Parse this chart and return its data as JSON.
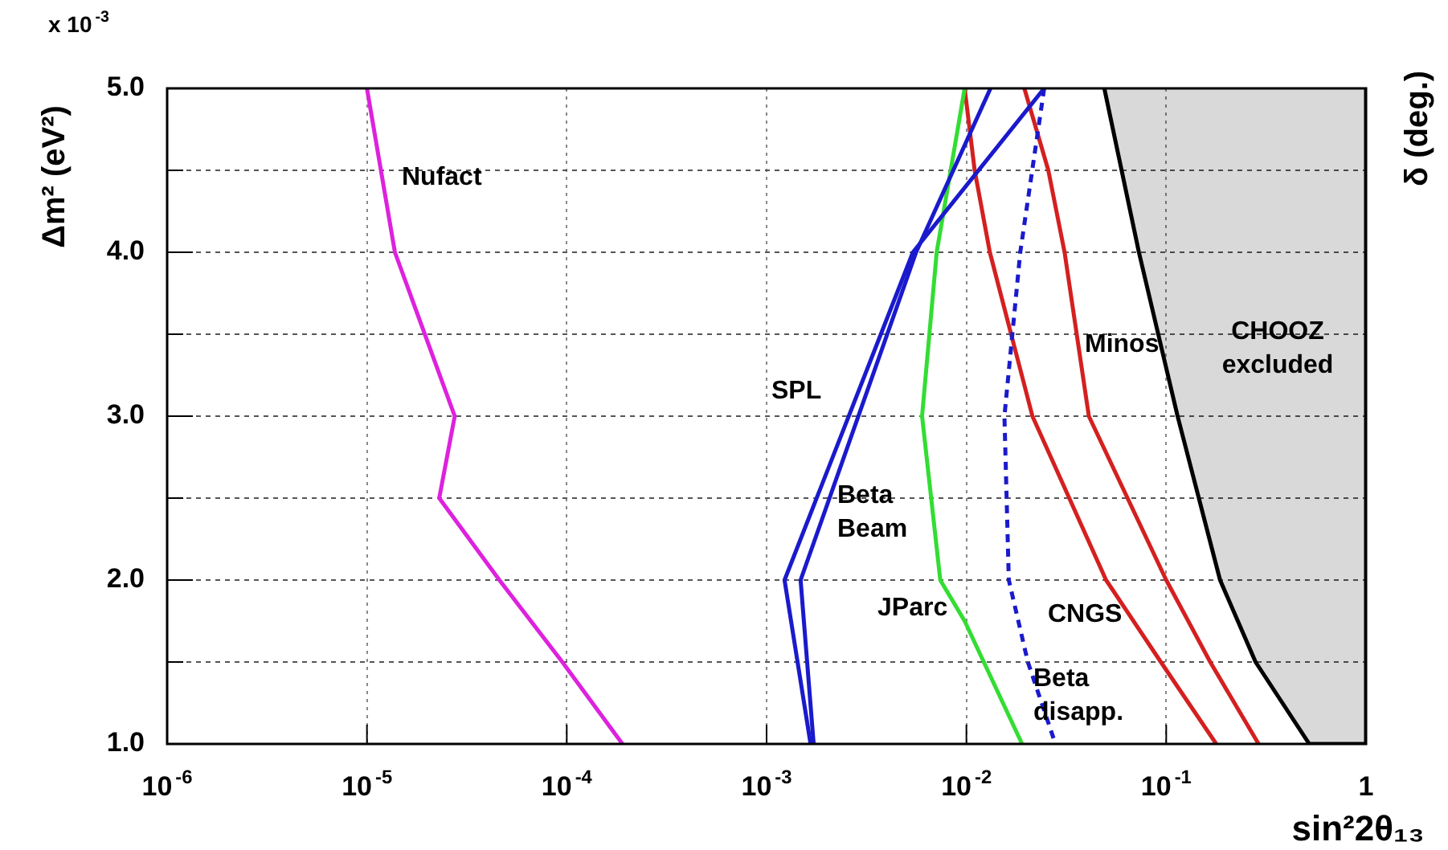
{
  "chart_data": {
    "type": "line",
    "xlabel": "sin²2θ₁₃",
    "ylabel": "Δm² (eV²)",
    "y2label": "δ (deg.)",
    "annotations": [
      "x 10$^{-3}$"
    ],
    "log": "x",
    "grid": true,
    "legend": false,
    "xlim": [
      1e-06,
      1
    ],
    "ylim": [
      1,
      5
    ],
    "xticks": [
      {
        "value": 1e-06,
        "label": "10$^{-6}$"
      },
      {
        "value": 1e-05,
        "label": "10$^{-5}$"
      },
      {
        "value": 0.0001,
        "label": "10$^{-4}$"
      },
      {
        "value": 0.001,
        "label": "10$^{-3}$"
      },
      {
        "value": 0.01,
        "label": "10$^{-2}$"
      },
      {
        "value": 0.1,
        "label": "10$^{-1}$"
      },
      1
    ],
    "yticks": [
      {
        "value": 1,
        "label": "1.0"
      },
      {
        "value": 1.5,
        "label": null
      },
      {
        "value": 2,
        "label": "2.0"
      },
      {
        "value": 2.5,
        "label": null
      },
      {
        "value": 3,
        "label": "3.0"
      },
      {
        "value": 3.5,
        "label": null
      },
      {
        "value": 4,
        "label": "4.0"
      },
      {
        "value": 4.5,
        "label": null
      },
      {
        "value": 5,
        "label": "5.0"
      }
    ],
    "series": [
      {
        "name": "Nufact",
        "color": "#dd22dd",
        "x": [
          1e-05,
          1.38e-05,
          2.75e-05,
          2.3e-05,
          4.6e-05,
          9.5e-05,
          0.00019
        ],
        "values": [
          5,
          4,
          3,
          2.5,
          2,
          1.5,
          1
        ]
      },
      {
        "name": "SPL",
        "color": "#1a1acc",
        "x": [
          0.0245,
          0.0054,
          0.00123,
          0.00166
        ],
        "values": [
          5,
          4,
          2,
          1
        ]
      },
      {
        "name": "Beta Beam",
        "color": "#1a1acc",
        "x": [
          0.0132,
          0.0056,
          0.00148,
          0.00172
        ],
        "values": [
          5,
          4,
          2,
          1
        ]
      },
      {
        "name": "JParc",
        "color": "#33dd33",
        "x": [
          0.0098,
          0.0071,
          0.006,
          0.0074,
          0.0098,
          0.019
        ],
        "values": [
          5,
          4,
          3,
          2,
          1.75,
          1
        ]
      },
      {
        "name": "Beta disapp.",
        "color": "#1a1acc",
        "line_style": "dashed",
        "x": [
          0.0245,
          0.0186,
          0.0155,
          0.0163,
          0.0203,
          0.0279
        ],
        "values": [
          5,
          4,
          3,
          2,
          1.5,
          1
        ]
      },
      {
        "name": "CNGS",
        "color": "#d42020",
        "x": [
          0.0098,
          0.011,
          0.0131,
          0.0214,
          0.05,
          0.094,
          0.178
        ],
        "values": [
          5,
          4.5,
          4,
          3,
          2,
          1.5,
          1
        ]
      },
      {
        "name": "Minos",
        "color": "#d42020",
        "x": [
          0.0195,
          0.0257,
          0.031,
          0.041,
          0.1,
          0.166,
          0.29
        ],
        "values": [
          5,
          4.5,
          4,
          3,
          2,
          1.5,
          1
        ]
      },
      {
        "name": "CHOOZ excluded",
        "type": "area",
        "color": "#000000",
        "x": [
          0.049,
          0.073,
          0.114,
          0.186,
          0.28,
          0.52,
          1,
          1
        ],
        "values": [
          5,
          4,
          3,
          2,
          1.5,
          1,
          1,
          5
        ]
      }
    ]
  }
}
